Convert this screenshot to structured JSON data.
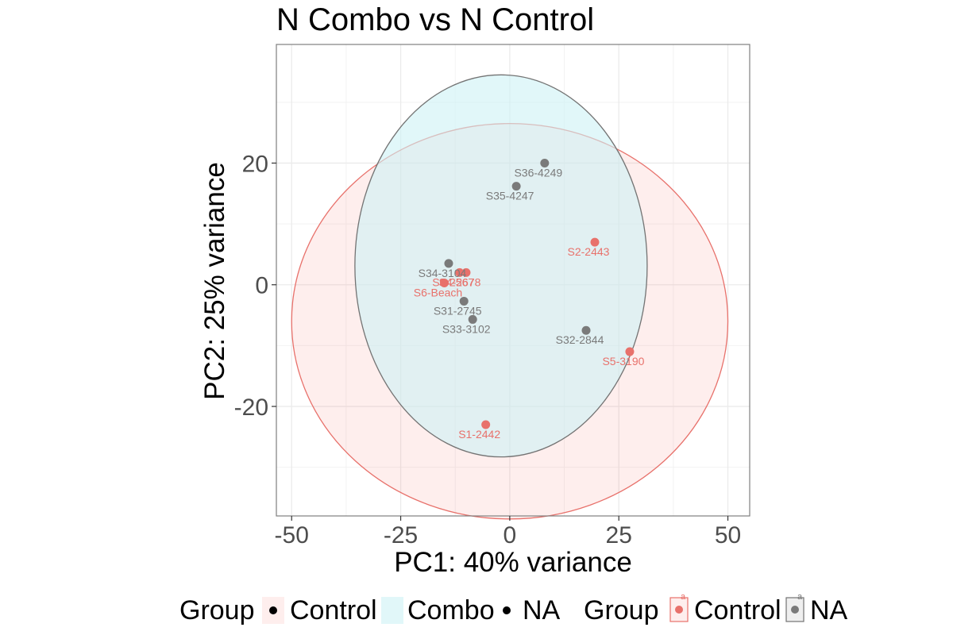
{
  "chart_data": {
    "type": "scatter",
    "title": "N Combo vs  N Control",
    "xlabel": "PC1: 40% variance",
    "ylabel": "PC2: 25% variance",
    "xlim": [
      -53.5,
      55
    ],
    "ylim": [
      -38,
      39.5
    ],
    "x_ticks": [
      -50,
      -25,
      0,
      25,
      50
    ],
    "y_ticks": [
      -20,
      0,
      20
    ],
    "x_tick_labels": [
      "-50",
      "-25",
      "0",
      "25",
      "50"
    ],
    "y_tick_labels": [
      "-20",
      "0",
      "20"
    ],
    "grid": true,
    "legend_position": "bottom",
    "colors": {
      "Control": "#e8716b",
      "NA": "#7a7a7a",
      "Combo_fill": "#cdf2f5"
    },
    "points": [
      {
        "label": "S36-4249",
        "x": 8,
        "y": 20,
        "group": "NA"
      },
      {
        "label": "S35-4247",
        "x": 1.5,
        "y": 16.2,
        "group": "NA"
      },
      {
        "label": "S34-3104",
        "x": -14,
        "y": 3.5,
        "group": "NA"
      },
      {
        "label": "S31-2745",
        "x": -10.5,
        "y": -2.7,
        "group": "NA"
      },
      {
        "label": "S33-3102",
        "x": -8.5,
        "y": -5.7,
        "group": "NA"
      },
      {
        "label": "S32-2844",
        "x": 17.5,
        "y": -7.5,
        "group": "NA"
      },
      {
        "label": "S2-2443",
        "x": 19.5,
        "y": 7,
        "group": "Control"
      },
      {
        "label": "S3-2567",
        "x": -11.5,
        "y": 2,
        "group": "Control"
      },
      {
        "label": "S4-2678",
        "x": -10,
        "y": 2,
        "group": "Control"
      },
      {
        "label": "S6-Beach",
        "x": -15,
        "y": 0.3,
        "group": "Control"
      },
      {
        "label": "S5-3190",
        "x": 27.5,
        "y": -11,
        "group": "Control"
      },
      {
        "label": "S1-2442",
        "x": -5.5,
        "y": -23,
        "group": "Control"
      }
    ],
    "ellipses": [
      {
        "group": "Control",
        "cx": 0,
        "cy": -6,
        "rx": 50,
        "ry": 32.5
      },
      {
        "group": "Combo",
        "cx": -2,
        "cy": 3.1,
        "rx": 33.5,
        "ry": 31.4
      }
    ],
    "legend": {
      "fill_title": "Group",
      "fill_items": [
        "Control",
        "Combo",
        "NA"
      ],
      "color_title": "Group",
      "color_items": [
        "Control",
        "NA"
      ],
      "key_glyph": "a"
    }
  }
}
